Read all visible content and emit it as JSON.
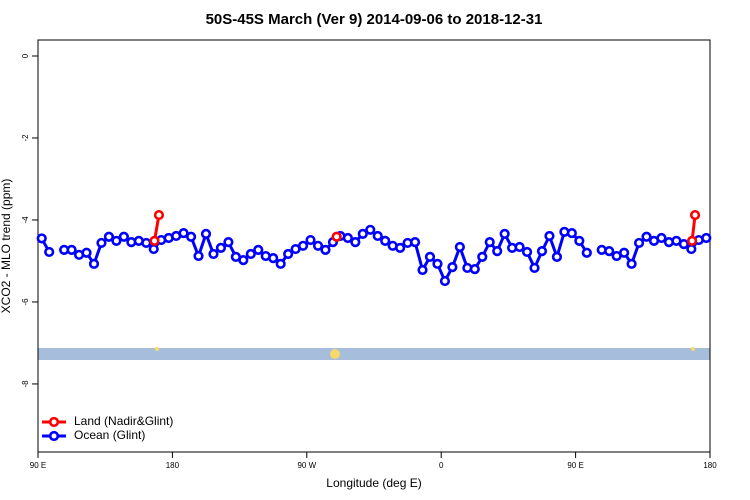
{
  "chart_data": {
    "type": "line",
    "title": "50S-45S March (Ver 9)   2014-09-06 to 2018-12-31",
    "x_label": "Longitude (deg E)",
    "y_label": "XCO2 - MLO trend (ppm)",
    "xlim": [
      90,
      540
    ],
    "ylim": [
      -9.66,
      0.39
    ],
    "xticks": [
      {
        "value": 90,
        "label": "90 E"
      },
      180,
      {
        "value": 270,
        "label": "90 W"
      },
      {
        "value": 360,
        "label": "0"
      },
      {
        "value": 450,
        "label": "90 E"
      },
      {
        "value": 540,
        "label": "180"
      }
    ],
    "yticks": [
      0,
      -2,
      -4,
      -6,
      -8
    ],
    "legend": "bottom-left",
    "series": [
      {
        "name": "Land (Nadir&Glint)",
        "color": "#ff0000",
        "x": [
          168,
          171,
          null,
          290,
          null,
          528,
          530
        ],
        "values": [
          -4.51,
          -3.88,
          null,
          -4.41,
          null,
          -4.51,
          -3.88
        ]
      },
      {
        "name": "Ocean (Glint)",
        "color": "#0000ff",
        "x": [
          92.5,
          97.5,
          102.5,
          107.5,
          112.5,
          117.5,
          122.5,
          127.5,
          132.5,
          137.5,
          142.5,
          147.5,
          152.5,
          157.5,
          162.5,
          167.5,
          172.5,
          177.5,
          182.5,
          187.5,
          192.5,
          197.5,
          202.5,
          207.5,
          212.5,
          217.5,
          222.5,
          227.5,
          232.5,
          237.5,
          242.5,
          247.5,
          252.5,
          257.5,
          262.5,
          267.5,
          272.5,
          277.5,
          282.5,
          287.5,
          292.5,
          297.5,
          302.5,
          307.5,
          312.5,
          317.5,
          322.5,
          327.5,
          332.5,
          337.5,
          342.5,
          347.5,
          352.5,
          357.5,
          362.5,
          367.5,
          372.5,
          377.5,
          382.5,
          387.5,
          392.5,
          397.5,
          402.5,
          407.5,
          412.5,
          417.5,
          422.5,
          427.5,
          432.5,
          437.5,
          442.5,
          447.5,
          452.5,
          457.5,
          462.5,
          467.5,
          472.5,
          477.5,
          482.5,
          487.5,
          492.5,
          497.5,
          502.5,
          507.5,
          512.5,
          517.5,
          522.5,
          527.5,
          532.5,
          537.5
        ],
        "values": [
          -4.45,
          -4.78,
          null,
          -4.73,
          -4.73,
          -4.85,
          -4.8,
          -5.07,
          -4.56,
          -4.41,
          -4.51,
          -4.41,
          -4.54,
          -4.51,
          -4.56,
          -4.71,
          -4.49,
          -4.44,
          -4.39,
          -4.32,
          -4.41,
          -4.88,
          -4.34,
          -4.83,
          -4.68,
          -4.54,
          -4.9,
          -4.98,
          -4.83,
          -4.73,
          -4.88,
          -4.93,
          -5.07,
          -4.83,
          -4.71,
          -4.63,
          -4.49,
          -4.63,
          -4.73,
          -4.54,
          -4.39,
          -4.44,
          -4.54,
          -4.34,
          -4.24,
          -4.39,
          -4.51,
          -4.63,
          -4.68,
          -4.56,
          -4.54,
          -5.22,
          -4.9,
          -5.07,
          -5.49,
          -5.15,
          -4.66,
          -5.17,
          -5.2,
          -4.9,
          -4.54,
          -4.76,
          -4.34,
          -4.68,
          -4.66,
          -4.78,
          -5.17,
          -4.76,
          -4.39,
          -4.9,
          -4.29,
          -4.32,
          -4.51,
          -4.8,
          null,
          -4.73,
          -4.76,
          -4.88,
          -4.8,
          -5.07,
          -4.56,
          -4.41,
          -4.51,
          -4.44,
          -4.54,
          -4.51,
          -4.59,
          -4.71,
          -4.49,
          -4.44
        ]
      }
    ]
  }
}
